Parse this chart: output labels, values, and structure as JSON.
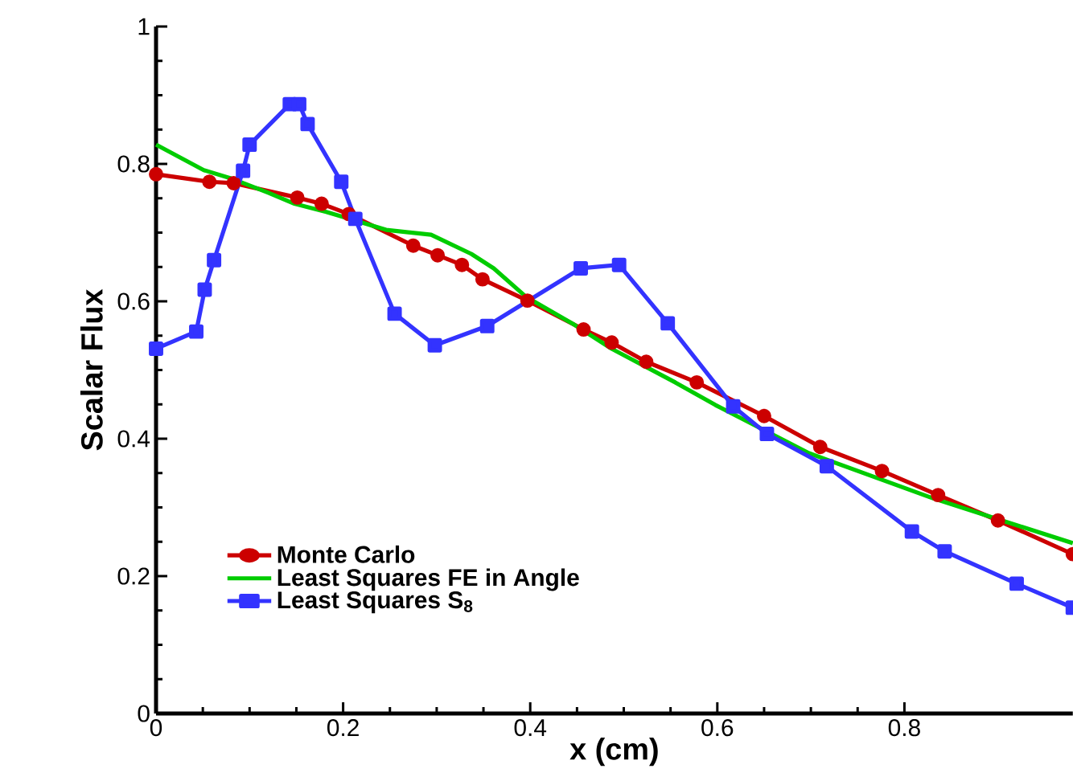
{
  "chart_data": {
    "type": "line",
    "xlabel": "x (cm)",
    "ylabel": "Scalar Flux",
    "xlim": [
      0,
      0.98
    ],
    "ylim": [
      0,
      1
    ],
    "xticks": [
      0,
      0.2,
      0.4,
      0.6,
      0.8
    ],
    "yticks": [
      0,
      0.2,
      0.4,
      0.6,
      0.8,
      1
    ],
    "legend": "bottom left",
    "line_style": "solid",
    "series": [
      {
        "name": "Monte Carlo",
        "color": "#cc0000",
        "marker": "circle",
        "x": [
          0,
          0.057,
          0.083,
          0.151,
          0.177,
          0.206,
          0.275,
          0.301,
          0.327,
          0.349,
          0.397,
          0.457,
          0.487,
          0.524,
          0.578,
          0.65,
          0.71,
          0.776,
          0.836,
          0.9,
          0.98
        ],
        "values": [
          0.785,
          0.774,
          0.772,
          0.751,
          0.742,
          0.727,
          0.681,
          0.667,
          0.653,
          0.632,
          0.601,
          0.559,
          0.54,
          0.512,
          0.482,
          0.433,
          0.388,
          0.353,
          0.318,
          0.281,
          0.232
        ]
      },
      {
        "name": "Least Squares FE in Angle",
        "color": "#00cc00",
        "marker": "none",
        "x": [
          0,
          0.051,
          0.08,
          0.12,
          0.148,
          0.182,
          0.246,
          0.294,
          0.337,
          0.361,
          0.396,
          0.447,
          0.487,
          0.555,
          0.598,
          0.698,
          0.831,
          0.98
        ],
        "values": [
          0.828,
          0.791,
          0.779,
          0.758,
          0.742,
          0.73,
          0.704,
          0.697,
          0.669,
          0.648,
          0.606,
          0.566,
          0.531,
          0.482,
          0.449,
          0.379,
          0.313,
          0.248
        ]
      },
      {
        "name": "Least Squares S$_{8}$",
        "color": "#3333ff",
        "marker": "square",
        "x": [
          0,
          0.043,
          0.052,
          0.062,
          0.093,
          0.1,
          0.143,
          0.153,
          0.162,
          0.198,
          0.213,
          0.255,
          0.298,
          0.354,
          0.454,
          0.495,
          0.547,
          0.617,
          0.653,
          0.717,
          0.808,
          0.843,
          0.92,
          0.98
        ],
        "values": [
          0.531,
          0.556,
          0.617,
          0.66,
          0.79,
          0.828,
          0.887,
          0.887,
          0.858,
          0.774,
          0.72,
          0.582,
          0.536,
          0.564,
          0.648,
          0.653,
          0.568,
          0.447,
          0.407,
          0.36,
          0.265,
          0.236,
          0.189,
          0.154
        ]
      }
    ]
  }
}
